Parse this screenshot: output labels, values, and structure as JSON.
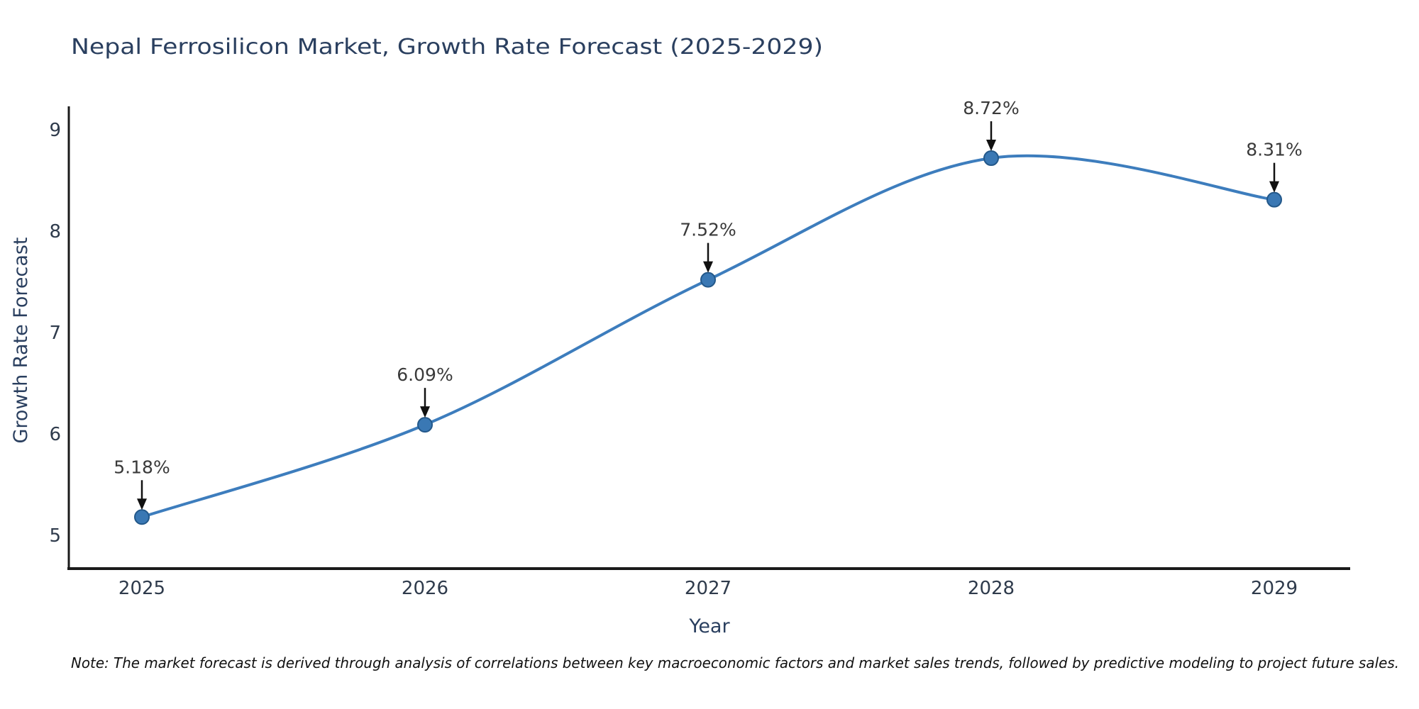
{
  "title": "Nepal Ferrosilicon Market, Growth Rate Forecast (2025-2029)",
  "note": "Note: The market forecast is derived through analysis of correlations between key macroeconomic factors and market sales trends, followed by predictive modeling to project future sales.",
  "chart_data": {
    "type": "line",
    "line_shape": "spline",
    "x": [
      2025,
      2026,
      2027,
      2028,
      2029
    ],
    "series": [
      {
        "name": "Growth Rate Forecast",
        "values": [
          5.18,
          6.09,
          7.52,
          8.72,
          8.31
        ]
      }
    ],
    "point_labels": [
      "5.18%",
      "6.09%",
      "7.52%",
      "8.72%",
      "8.31%"
    ],
    "title": "Nepal Ferrosilicon Market, Growth Rate Forecast (2025-2029)",
    "xlabel": "Year",
    "ylabel": "Growth Rate Forecast",
    "xticks": [
      2025,
      2026,
      2027,
      2028,
      2029
    ],
    "yticks": [
      5,
      6,
      7,
      8,
      9
    ],
    "xlim": [
      2024.73,
      2029.27
    ],
    "ylim": [
      4.67,
      9.23
    ],
    "grid": false,
    "legend": "none",
    "markers": true,
    "annotation_arrows": true,
    "colors": {
      "line": "#3d7dbd",
      "marker_fill": "#3a78b4",
      "marker_edge": "#23588a",
      "annotation_text": "#3a3a3a",
      "arrow": "#111111",
      "axis_spine": "#1a1a1a",
      "title_text": "#2a3f5f",
      "tick_text": "#2f3b4c"
    }
  }
}
